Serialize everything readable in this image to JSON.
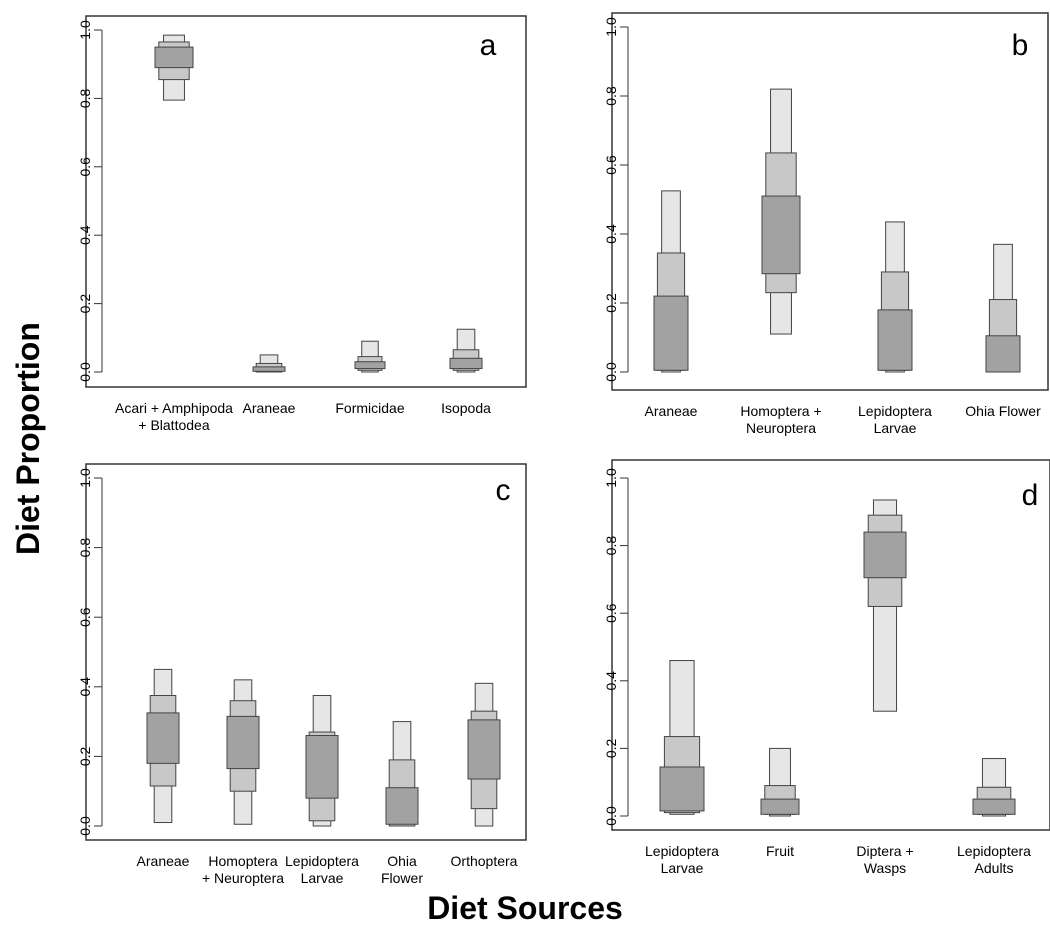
{
  "figure": {
    "ylabel": "Diet Proportion",
    "xlabel": "Diet Sources",
    "colors": {
      "q95": "#e6e6e6",
      "q75": "#c8c8c8",
      "q50": "#a2a2a2",
      "stroke": "#444444"
    }
  },
  "chart_data": [
    {
      "type": "box",
      "panel_label": "a",
      "ylim": [
        0,
        1
      ],
      "yticks": [
        "0.0",
        "0.2",
        "0.4",
        "0.6",
        "0.8",
        "1.0"
      ],
      "categories": [
        [
          "Acari + Amphipoda",
          "+ Blattodea"
        ],
        [
          "Araneae"
        ],
        [
          "Formicidae"
        ],
        [
          "Isopoda"
        ]
      ],
      "intervals": [
        {
          "q95": [
            0.795,
            0.985
          ],
          "q75": [
            0.855,
            0.965
          ],
          "q50": [
            0.89,
            0.95
          ]
        },
        {
          "q95": [
            0.0,
            0.05
          ],
          "q75": [
            0.0,
            0.025
          ],
          "q50": [
            0.002,
            0.015
          ]
        },
        {
          "q95": [
            0.0,
            0.09
          ],
          "q75": [
            0.005,
            0.045
          ],
          "q50": [
            0.01,
            0.03
          ]
        },
        {
          "q95": [
            0.0,
            0.125
          ],
          "q75": [
            0.005,
            0.065
          ],
          "q50": [
            0.01,
            0.04
          ]
        }
      ]
    },
    {
      "type": "box",
      "panel_label": "b",
      "ylim": [
        0,
        1
      ],
      "yticks": [
        "0.0",
        "0.2",
        "0.4",
        "0.6",
        "0.8",
        "1.0"
      ],
      "categories": [
        [
          "Araneae"
        ],
        [
          "Homoptera +",
          "Neuroptera"
        ],
        [
          "Lepidoptera",
          "Larvae"
        ],
        [
          "Ohia Flower"
        ]
      ],
      "intervals": [
        {
          "q95": [
            0.0,
            0.525
          ],
          "q75": [
            0.005,
            0.345
          ],
          "q50": [
            0.005,
            0.22
          ]
        },
        {
          "q95": [
            0.11,
            0.82
          ],
          "q75": [
            0.23,
            0.635
          ],
          "q50": [
            0.285,
            0.51
          ]
        },
        {
          "q95": [
            0.0,
            0.435
          ],
          "q75": [
            0.005,
            0.29
          ],
          "q50": [
            0.005,
            0.18
          ]
        },
        {
          "q95": [
            0.0,
            0.37
          ],
          "q75": [
            0.0,
            0.21
          ],
          "q50": [
            0.0,
            0.105
          ]
        }
      ]
    },
    {
      "type": "box",
      "panel_label": "c",
      "ylim": [
        0,
        1
      ],
      "yticks": [
        "0.0",
        "0.2",
        "0.4",
        "0.6",
        "0.8",
        "1.0"
      ],
      "categories": [
        [
          "Araneae"
        ],
        [
          "Homoptera",
          "+ Neuroptera"
        ],
        [
          "Lepidoptera",
          "Larvae"
        ],
        [
          "Ohia",
          "Flower"
        ],
        [
          "Orthoptera"
        ]
      ],
      "intervals": [
        {
          "q95": [
            0.01,
            0.45
          ],
          "q75": [
            0.115,
            0.375
          ],
          "q50": [
            0.18,
            0.325
          ]
        },
        {
          "q95": [
            0.005,
            0.42
          ],
          "q75": [
            0.1,
            0.36
          ],
          "q50": [
            0.165,
            0.315
          ]
        },
        {
          "q95": [
            0.0,
            0.375
          ],
          "q75": [
            0.015,
            0.27
          ],
          "q50": [
            0.08,
            0.26
          ]
        },
        {
          "q95": [
            0.0,
            0.3
          ],
          "q75": [
            0.0,
            0.19
          ],
          "q50": [
            0.005,
            0.11
          ]
        },
        {
          "q95": [
            0.0,
            0.41
          ],
          "q75": [
            0.05,
            0.33
          ],
          "q50": [
            0.135,
            0.305
          ]
        }
      ]
    },
    {
      "type": "box",
      "panel_label": "d",
      "ylim": [
        0,
        1
      ],
      "yticks": [
        "0.0",
        "0.2",
        "0.4",
        "0.6",
        "0.8",
        "1.0"
      ],
      "categories": [
        [
          "Lepidoptera",
          "Larvae"
        ],
        [
          "Fruit"
        ],
        [
          "Diptera +",
          "Wasps"
        ],
        [
          "Lepidoptera",
          "Adults"
        ]
      ],
      "intervals": [
        {
          "q95": [
            0.005,
            0.46
          ],
          "q75": [
            0.01,
            0.235
          ],
          "q50": [
            0.015,
            0.145
          ]
        },
        {
          "q95": [
            0.0,
            0.2
          ],
          "q75": [
            0.005,
            0.09
          ],
          "q50": [
            0.005,
            0.05
          ]
        },
        {
          "q95": [
            0.31,
            0.935
          ],
          "q75": [
            0.62,
            0.89
          ],
          "q50": [
            0.705,
            0.84
          ]
        },
        {
          "q95": [
            0.0,
            0.17
          ],
          "q75": [
            0.005,
            0.085
          ],
          "q50": [
            0.005,
            0.05
          ]
        }
      ]
    }
  ]
}
